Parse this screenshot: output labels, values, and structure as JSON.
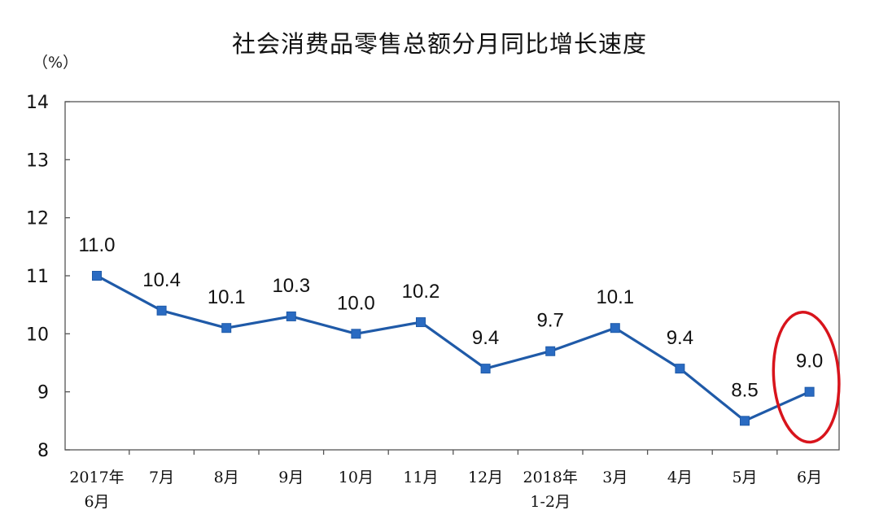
{
  "chart_data": {
    "type": "line",
    "title": "社会消费品零售总额分月同比增长速度",
    "ylabel": "（%）",
    "xlabel": "",
    "ylim": [
      8,
      14
    ],
    "yticks": [
      "14",
      "13",
      "12",
      "11",
      "10",
      "9",
      "8"
    ],
    "categories": [
      [
        "2017年",
        "6月"
      ],
      [
        "7月"
      ],
      [
        "8月"
      ],
      [
        "9月"
      ],
      [
        "10月"
      ],
      [
        "11月"
      ],
      [
        "12月"
      ],
      [
        "2018年",
        "1-2月"
      ],
      [
        "3月"
      ],
      [
        "4月"
      ],
      [
        "5月"
      ],
      [
        "6月"
      ]
    ],
    "series": [
      {
        "values": [
          11.0,
          10.4,
          10.1,
          10.3,
          10.0,
          10.2,
          9.4,
          9.7,
          10.1,
          9.4,
          8.5,
          9.0
        ],
        "labels": [
          "11.0",
          "10.4",
          "10.1",
          "10.3",
          "10.0",
          "10.2",
          "9.4",
          "9.7",
          "10.1",
          "9.4",
          "8.5",
          "9.0"
        ]
      }
    ],
    "highlight_index": 11,
    "grid": false,
    "legend": "none",
    "colors": {
      "line": "#1f5aa8",
      "marker": "#2a6bc2",
      "highlight": "#d8141c",
      "axis": "#555555"
    }
  }
}
